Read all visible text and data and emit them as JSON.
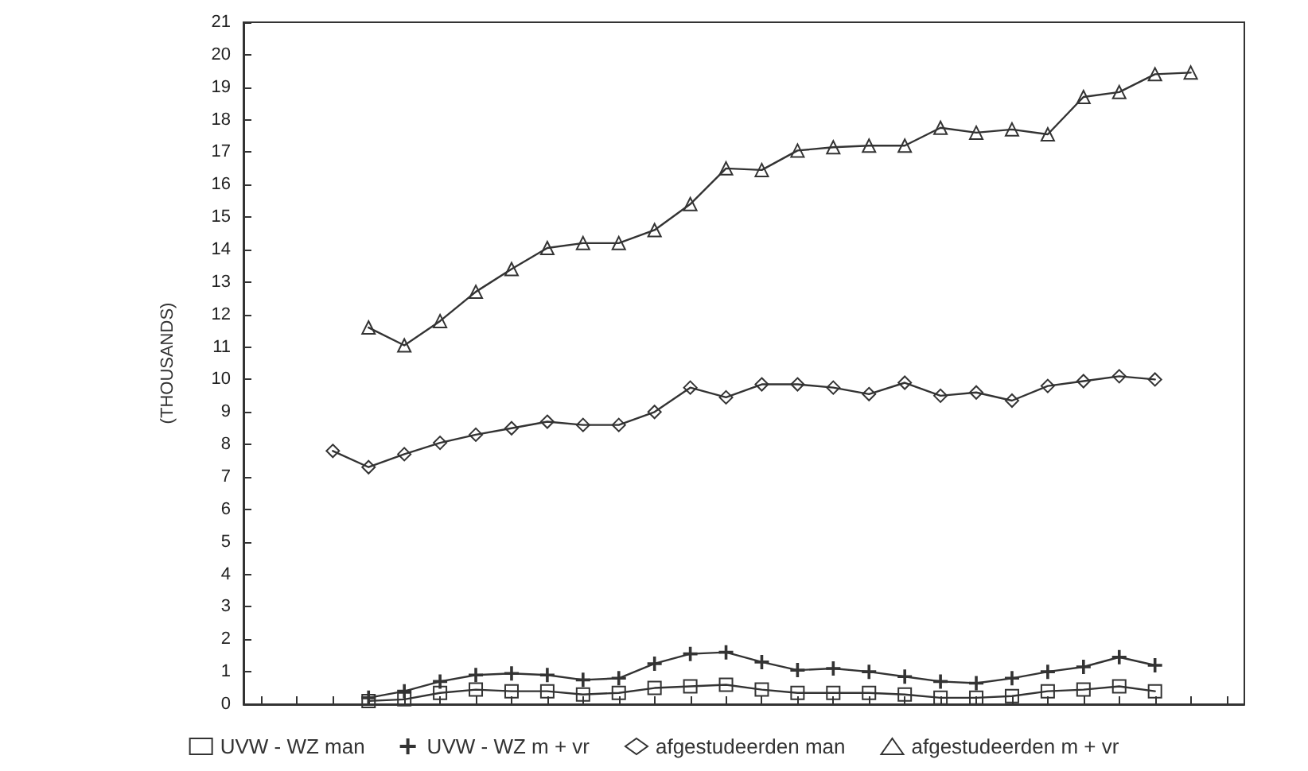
{
  "chart_data": {
    "type": "line",
    "ylabel": "(THOUSANDS)",
    "categories": [
      null,
      null,
      null,
      null,
      null,
      null,
      null,
      null,
      null,
      null,
      null,
      null,
      null,
      null,
      null,
      null,
      null,
      null,
      null,
      null,
      null,
      null,
      null,
      null,
      null,
      null,
      null,
      null
    ],
    "ylim": [
      0,
      21
    ],
    "yticks": [
      0,
      1,
      2,
      3,
      4,
      5,
      6,
      7,
      8,
      9,
      10,
      11,
      12,
      13,
      14,
      15,
      16,
      17,
      18,
      19,
      20,
      21
    ],
    "grid": false,
    "legend": "bottom",
    "line_style": "solid",
    "series": [
      {
        "name": "UVW - WZ man",
        "color": "#333333",
        "marker": "square",
        "values": [
          null,
          null,
          null,
          0.1,
          0.15,
          0.35,
          0.45,
          0.4,
          0.4,
          0.3,
          0.35,
          0.5,
          0.55,
          0.6,
          0.45,
          0.35,
          0.35,
          0.35,
          0.3,
          0.2,
          0.2,
          0.25,
          0.4,
          0.45,
          0.55,
          0.4,
          null,
          null
        ]
      },
      {
        "name": "UVW - WZ m + vr",
        "color": "#333333",
        "marker": "cross",
        "values": [
          null,
          null,
          null,
          0.2,
          0.4,
          0.7,
          0.9,
          0.95,
          0.9,
          0.75,
          0.8,
          1.25,
          1.55,
          1.6,
          1.3,
          1.05,
          1.1,
          1.0,
          0.85,
          0.7,
          0.65,
          0.8,
          1.0,
          1.15,
          1.45,
          1.2,
          null,
          null
        ]
      },
      {
        "name": "afgestudeerden man",
        "color": "#333333",
        "marker": "diamond",
        "values": [
          null,
          null,
          7.8,
          7.3,
          7.7,
          8.05,
          8.3,
          8.5,
          8.7,
          8.6,
          8.6,
          9.0,
          9.75,
          9.45,
          9.85,
          9.85,
          9.75,
          9.55,
          9.9,
          9.5,
          9.6,
          9.35,
          9.8,
          9.95,
          10.1,
          10.0,
          null,
          null
        ]
      },
      {
        "name": "afgestudeerden m + vr",
        "color": "#333333",
        "marker": "triangle",
        "values": [
          null,
          null,
          null,
          11.6,
          11.05,
          11.8,
          12.7,
          13.4,
          14.05,
          14.2,
          14.2,
          14.6,
          15.4,
          16.5,
          16.45,
          17.05,
          17.15,
          17.2,
          17.2,
          17.75,
          17.6,
          17.7,
          17.55,
          18.7,
          18.85,
          19.4,
          19.45,
          null
        ]
      }
    ]
  }
}
